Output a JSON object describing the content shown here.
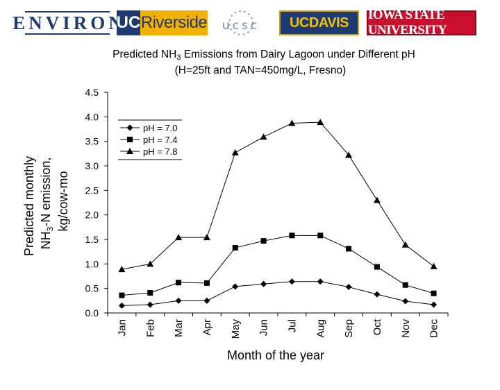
{
  "logos": {
    "environ": "ENVIRON",
    "ucr_uc": "UC",
    "ucr_rest": "Riverside",
    "ucsc": "ucsc",
    "ucd": "UCDAVIS",
    "isu": "IOWA STATE UNIVERSITY"
  },
  "chart_data": {
    "type": "line",
    "title": {
      "prefix": "Predicted NH",
      "sub": "3",
      "suffix": " Emissions from Dairy Lagoon under Different pH"
    },
    "subtitle": "(H=25ft and TAN=450mg/L, Fresno)",
    "ylabel": {
      "line1": "Predicted monthly",
      "line2_prefix": "NH",
      "line2_sub": "3",
      "line2_suffix": "-N emission,",
      "line3": "kg/cow-mo"
    },
    "xlabel": "Month of the year",
    "ylim": [
      0,
      4.5
    ],
    "yticks": [
      "0.0",
      "0.5",
      "1.0",
      "1.5",
      "2.0",
      "2.5",
      "3.0",
      "3.5",
      "4.0",
      "4.5"
    ],
    "categories": [
      "Jan",
      "Feb",
      "Mar",
      "Apr",
      "May",
      "Jun",
      "Jul",
      "Aug",
      "Sep",
      "Oct",
      "Nov",
      "Dec"
    ],
    "legend_position": "top-left",
    "grid": false,
    "series": [
      {
        "name": "pH = 7.0",
        "marker": "diamond",
        "values": [
          0.15,
          0.17,
          0.25,
          0.25,
          0.54,
          0.59,
          0.64,
          0.64,
          0.53,
          0.38,
          0.24,
          0.17
        ]
      },
      {
        "name": "pH = 7.4",
        "marker": "square",
        "values": [
          0.36,
          0.41,
          0.62,
          0.61,
          1.33,
          1.47,
          1.58,
          1.58,
          1.31,
          0.94,
          0.57,
          0.4
        ]
      },
      {
        "name": "pH = 7.8",
        "marker": "triangle",
        "values": [
          0.89,
          1.0,
          1.54,
          1.54,
          3.27,
          3.59,
          3.87,
          3.89,
          3.22,
          2.3,
          1.39,
          0.95
        ]
      }
    ]
  }
}
